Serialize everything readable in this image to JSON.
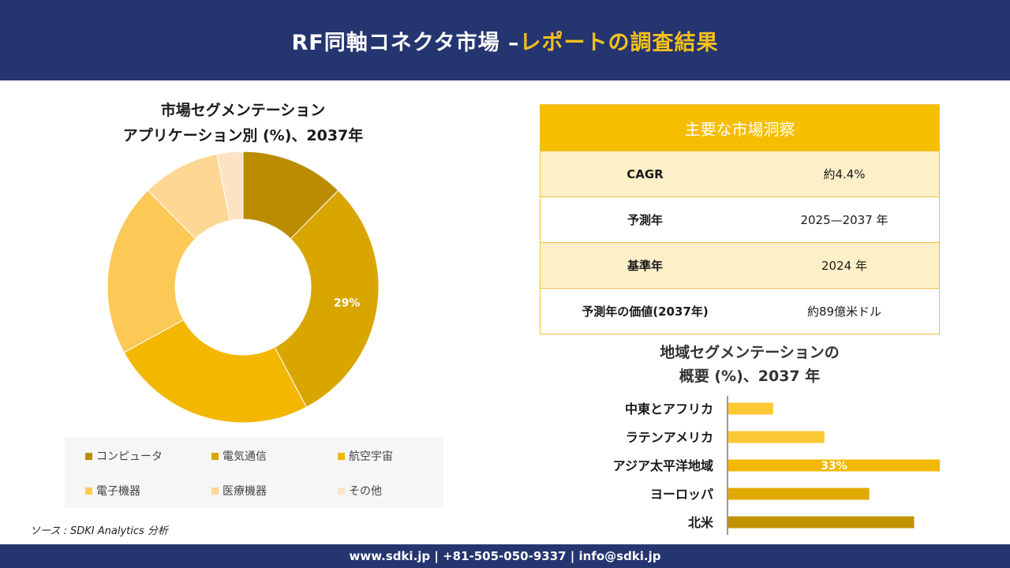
{
  "header": {
    "title_main": "RF同軸コネクタ市場 –",
    "title_accent": "レポートの調査結果"
  },
  "donut": {
    "title_line1": "市場セグメンテーション",
    "title_line2": "アプリケーション別 (%)、2037年"
  },
  "insights": {
    "heading": "主要な市場洞察",
    "rows": [
      {
        "label": "CAGR",
        "value": "約4.4%"
      },
      {
        "label": "予測年",
        "value": "2025—2037 年"
      },
      {
        "label": "基準年",
        "value": "2024 年"
      },
      {
        "label": "予測年の価値(2037年)",
        "value": "約89億米ドル"
      }
    ]
  },
  "bars": {
    "title_line1": "地域セグメンテーションの",
    "title_line2": "概要 (%)、2037 年"
  },
  "source": "ソース : SDKI Analytics 分析",
  "footer": "www.sdki.jp | +81-505-050-9337 | info@sdki.jp",
  "colors": {
    "header_bg": "#243570",
    "accent": "#f6c11a",
    "insights_head": "#f6be00",
    "insights_shade": "#fdf0c8"
  },
  "chart_data": [
    {
      "type": "pie",
      "categories": [
        "コンピュータ",
        "電気通信",
        "航空宇宙",
        "電子機器",
        "医療機器",
        "その他"
      ],
      "values": [
        12,
        29,
        24,
        20,
        9,
        3
      ],
      "colors": [
        "#bb8c00",
        "#d9a600",
        "#f3b700",
        "#fcc957",
        "#fed795",
        "#fde3c4"
      ],
      "data_labels": [
        "",
        "29%",
        "",
        "",
        "",
        ""
      ],
      "legend_position": "bottom"
    },
    {
      "type": "bar",
      "orientation": "horizontal",
      "categories": [
        "中東とアフリカ",
        "ラテンアメリカ",
        "アジア太平洋地域",
        "ヨーロッパ",
        "北米"
      ],
      "values": [
        7,
        15,
        33,
        22,
        29
      ],
      "colors": [
        "#fcc934",
        "#fcc934",
        "#f3b800",
        "#e0aa00",
        "#c29200"
      ],
      "data_labels": [
        "",
        "",
        "33%",
        "",
        ""
      ]
    }
  ]
}
